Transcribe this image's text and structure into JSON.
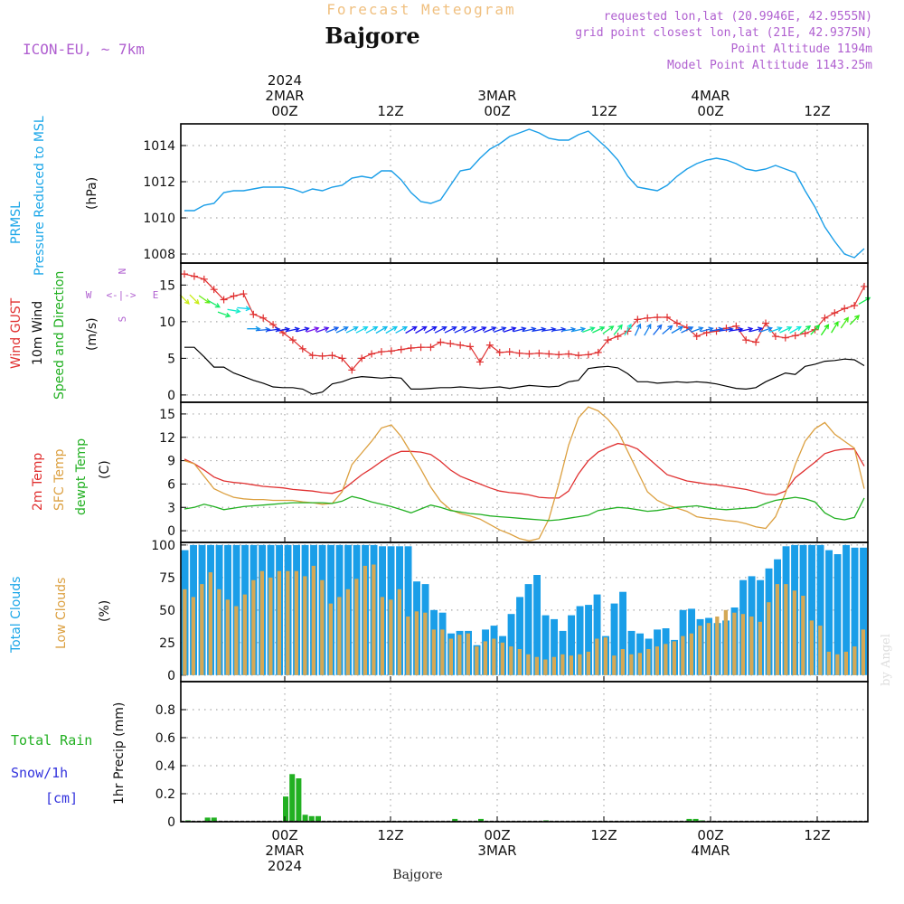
{
  "header": {
    "product": "Forecast Meteogram",
    "station": "Bajgore",
    "model": "ICON-EU, ~ 7km",
    "info_lines": [
      "requested lon,lat (20.9946E, 42.9555N)",
      "grid point closest lon,lat (21E, 42.9375N)",
      "Point Altitude 1194m",
      "Model Point Altitude 1143.25m"
    ],
    "footer_station": "Bajgore",
    "watermark": "by Angel"
  },
  "colors": {
    "pressure": "#1a9ee8",
    "gust": "#e03030",
    "wind10m": "#000000",
    "temp2m": "#e03030",
    "sfc": "#dca040",
    "dewpt": "#22b022",
    "total_cloud": "#1a9ee8",
    "low_cloud": "#d4a855",
    "rain": "#22b022",
    "snow": "#3333dd",
    "header_purple": "#b060d0",
    "product_orange": "#f0c080",
    "legend_cyan": "#1aa6e8"
  },
  "time_axis": {
    "top_labels": [
      {
        "lines": [
          "2024",
          "2MAR",
          "00Z"
        ]
      },
      {
        "lines": [
          "12Z"
        ]
      },
      {
        "lines": [
          "3MAR",
          "00Z"
        ]
      },
      {
        "lines": [
          "12Z"
        ]
      },
      {
        "lines": [
          "4MAR",
          "00Z"
        ]
      },
      {
        "lines": [
          "12Z"
        ]
      }
    ],
    "bottom_labels": [
      {
        "lines": [
          "00Z",
          "2MAR",
          "2024"
        ]
      },
      {
        "lines": [
          "12Z"
        ]
      },
      {
        "lines": [
          "00Z",
          "3MAR"
        ]
      },
      {
        "lines": [
          "12Z"
        ]
      },
      {
        "lines": [
          "00Z",
          "4MAR"
        ]
      },
      {
        "lines": [
          "12Z"
        ]
      }
    ]
  },
  "chart_data": [
    {
      "type": "line",
      "panel": "pressure",
      "ylabel_lines": [
        "PRMSL",
        "Pressure Reduced to MSL"
      ],
      "unit": "(hPa)",
      "ylim": [
        1007.5,
        1015.2
      ],
      "yticks": [
        1008,
        1010,
        1012,
        1014
      ],
      "grid": true,
      "series": [
        {
          "values": [
            1010.4,
            1010.4,
            1010.7,
            1010.8,
            1011.4,
            1011.5,
            1011.5,
            1011.6,
            1011.7,
            1011.7,
            1011.7,
            1011.6,
            1011.4,
            1011.6,
            1011.5,
            1011.7,
            1011.8,
            1012.2,
            1012.3,
            1012.2,
            1012.6,
            1012.6,
            1012.1,
            1011.4,
            1010.9,
            1010.8,
            1011.0,
            1011.8,
            1012.6,
            1012.7,
            1013.3,
            1013.8,
            1014.1,
            1014.5,
            1014.7,
            1014.9,
            1014.7,
            1014.4,
            1014.3,
            1014.3,
            1014.6,
            1014.8,
            1014.3,
            1013.8,
            1013.2,
            1012.3,
            1011.7,
            1011.6,
            1011.5,
            1011.8,
            1012.3,
            1012.7,
            1013.0,
            1013.2,
            1013.3,
            1013.2,
            1013.0,
            1012.7,
            1012.6,
            1012.7,
            1012.9,
            1012.7,
            1012.5,
            1011.5,
            1010.6,
            1009.5,
            1008.7,
            1008.0,
            1007.8,
            1008.3
          ]
        }
      ]
    },
    {
      "type": "line",
      "panel": "wind",
      "ylabel_lines": [
        "Wind GUST",
        "10m Wind",
        "Speed and Direction"
      ],
      "unit": "(m/s)",
      "compass": {
        "n": "N",
        "s": "S",
        "w": "W",
        "e": "E",
        "arrow": "<-|->"
      },
      "ylim": [
        -1,
        18
      ],
      "yticks": [
        0,
        5,
        10,
        15
      ],
      "grid": true,
      "series": [
        {
          "name": "Wind GUST",
          "values": [
            16.5,
            16.2,
            15.8,
            14.4,
            13.0,
            13.5,
            13.8,
            11.0,
            10.5,
            9.6,
            8.5,
            7.5,
            6.3,
            5.4,
            5.3,
            5.4,
            5.0,
            3.4,
            5.0,
            5.6,
            5.9,
            6.0,
            6.2,
            6.4,
            6.5,
            6.5,
            7.2,
            7.0,
            6.8,
            6.6,
            4.5,
            6.8,
            5.8,
            5.9,
            5.7,
            5.6,
            5.7,
            5.6,
            5.5,
            5.6,
            5.4,
            5.5,
            5.8,
            7.5,
            8.0,
            8.7,
            10.3,
            10.5,
            10.6,
            10.6,
            9.8,
            9.2,
            8.0,
            8.5,
            8.7,
            9.1,
            9.4,
            7.5,
            7.2,
            9.8,
            8.0,
            7.8,
            8.1,
            8.4,
            8.9,
            10.5,
            11.2,
            11.8,
            12.2,
            14.8
          ]
        },
        {
          "name": "10m Wind",
          "values": [
            6.5,
            6.5,
            5.2,
            3.8,
            3.8,
            3.0,
            2.5,
            2.0,
            1.6,
            1.1,
            1.0,
            1.0,
            0.8,
            0.1,
            0.4,
            1.5,
            1.8,
            2.3,
            2.5,
            2.4,
            2.3,
            2.4,
            2.3,
            0.8,
            0.8,
            0.9,
            1.0,
            1.0,
            1.1,
            1.0,
            0.9,
            1.0,
            1.1,
            0.9,
            1.1,
            1.3,
            1.2,
            1.1,
            1.2,
            1.8,
            2.0,
            3.6,
            3.8,
            3.9,
            3.7,
            2.9,
            1.8,
            1.8,
            1.6,
            1.7,
            1.8,
            1.7,
            1.8,
            1.7,
            1.5,
            1.2,
            0.9,
            0.8,
            1.0,
            1.8,
            2.4,
            3.0,
            2.8,
            3.9,
            4.2,
            4.6,
            4.7,
            4.9,
            4.8,
            4.0
          ]
        },
        {
          "name": "Direction (deg from)",
          "values": [
            315,
            315,
            305,
            300,
            290,
            280,
            275,
            270,
            265,
            262,
            260,
            258,
            255,
            252,
            250,
            248,
            245,
            244,
            243,
            242,
            240,
            240,
            242,
            240,
            240,
            242,
            243,
            244,
            245,
            246,
            247,
            248,
            250,
            252,
            255,
            258,
            260,
            262,
            263,
            262,
            258,
            250,
            245,
            235,
            220,
            210,
            205,
            210,
            220,
            230,
            240,
            245,
            250,
            255,
            260,
            262,
            262,
            258,
            255,
            252,
            250,
            245,
            240,
            232,
            222,
            215,
            212,
            215,
            225,
            240
          ]
        }
      ]
    },
    {
      "type": "line",
      "panel": "temperature",
      "ylabel_lines": [
        "2m Temp",
        "SFC Temp",
        "dewpt Temp"
      ],
      "unit": "(C)",
      "ylim": [
        -1.5,
        16.5
      ],
      "yticks": [
        0,
        3,
        6,
        9,
        12,
        15
      ],
      "grid": true,
      "series": [
        {
          "name": "2m Temp",
          "values": [
            9.2,
            8.6,
            7.8,
            6.9,
            6.4,
            6.2,
            6.1,
            5.9,
            5.7,
            5.6,
            5.5,
            5.3,
            5.2,
            5.1,
            4.9,
            4.8,
            5.2,
            6.2,
            7.2,
            8.0,
            8.9,
            9.7,
            10.2,
            10.2,
            10.1,
            9.8,
            8.9,
            7.8,
            7.0,
            6.5,
            6.0,
            5.5,
            5.1,
            4.9,
            4.8,
            4.6,
            4.3,
            4.2,
            4.2,
            5.1,
            7.3,
            9.0,
            10.1,
            10.7,
            11.2,
            11.0,
            10.5,
            9.4,
            8.3,
            7.2,
            6.8,
            6.4,
            6.2,
            6.0,
            5.9,
            5.7,
            5.5,
            5.3,
            5.0,
            4.7,
            4.6,
            5.1,
            6.8,
            7.8,
            8.8,
            9.9,
            10.3,
            10.5,
            10.5,
            8.3
          ]
        },
        {
          "name": "SFC Temp",
          "values": [
            9.0,
            8.6,
            7.0,
            5.4,
            4.8,
            4.3,
            4.1,
            4.0,
            4.0,
            3.9,
            3.9,
            3.9,
            3.7,
            3.6,
            3.4,
            3.5,
            5.0,
            8.5,
            10.0,
            11.5,
            13.2,
            13.6,
            12.1,
            10.0,
            7.9,
            5.6,
            3.8,
            2.7,
            2.2,
            1.9,
            1.5,
            0.8,
            0.1,
            -0.4,
            -1.0,
            -1.3,
            -1.0,
            1.5,
            6.0,
            11.0,
            14.5,
            15.9,
            15.4,
            14.3,
            12.8,
            10.2,
            7.6,
            5.0,
            3.9,
            3.3,
            2.9,
            2.5,
            1.8,
            1.6,
            1.5,
            1.3,
            1.2,
            0.9,
            0.5,
            0.3,
            1.8,
            4.8,
            8.5,
            11.5,
            13.1,
            13.9,
            12.4,
            11.5,
            10.6,
            5.4
          ]
        },
        {
          "name": "dewpt Temp",
          "values": [
            2.8,
            3.0,
            3.4,
            3.1,
            2.7,
            2.9,
            3.1,
            3.2,
            3.3,
            3.4,
            3.5,
            3.6,
            3.6,
            3.6,
            3.6,
            3.5,
            3.8,
            4.4,
            4.1,
            3.7,
            3.4,
            3.1,
            2.7,
            2.3,
            2.8,
            3.3,
            3.0,
            2.6,
            2.4,
            2.2,
            2.1,
            1.9,
            1.8,
            1.7,
            1.6,
            1.5,
            1.4,
            1.3,
            1.4,
            1.6,
            1.8,
            2.0,
            2.6,
            2.8,
            3.0,
            2.9,
            2.7,
            2.5,
            2.6,
            2.8,
            3.0,
            3.1,
            3.2,
            3.0,
            2.8,
            2.7,
            2.8,
            2.9,
            3.0,
            3.5,
            3.9,
            4.1,
            4.3,
            4.1,
            3.7,
            2.3,
            1.6,
            1.4,
            1.7,
            4.2
          ]
        }
      ]
    },
    {
      "type": "bar",
      "panel": "clouds",
      "ylabel_lines": [
        "Total Clouds",
        "Low Clouds"
      ],
      "unit": "(%)",
      "ylim": [
        -5,
        102
      ],
      "yticks": [
        0,
        25,
        50,
        75,
        100
      ],
      "grid": true,
      "series": [
        {
          "name": "Total Clouds",
          "values": [
            96,
            100,
            100,
            100,
            100,
            100,
            100,
            100,
            100,
            100,
            100,
            100,
            100,
            100,
            100,
            100,
            100,
            100,
            100,
            100,
            100,
            100,
            100,
            99,
            99,
            99,
            99,
            72,
            70,
            50,
            48,
            32,
            34,
            34,
            23,
            35,
            38,
            30,
            47,
            60,
            70,
            77,
            46,
            43,
            34,
            46,
            53,
            54,
            62,
            30,
            55,
            64,
            34,
            32,
            28,
            35,
            36,
            27,
            50,
            51,
            43,
            44,
            40,
            42,
            52,
            73,
            76,
            73,
            82,
            89,
            99,
            100,
            100,
            100,
            100,
            96,
            93,
            100,
            98,
            98
          ]
        },
        {
          "name": "Low Clouds",
          "values": [
            66,
            60,
            70,
            79,
            66,
            58,
            53,
            62,
            73,
            80,
            75,
            80,
            80,
            80,
            76,
            84,
            73,
            55,
            60,
            66,
            74,
            84,
            85,
            60,
            58,
            66,
            45,
            49,
            48,
            35,
            35,
            28,
            31,
            32,
            22,
            26,
            28,
            25,
            22,
            20,
            16,
            14,
            12,
            14,
            16,
            15,
            16,
            18,
            28,
            29,
            15,
            20,
            16,
            17,
            20,
            22,
            24,
            26,
            30,
            32,
            38,
            40,
            45,
            50,
            48,
            47,
            45,
            41,
            56,
            70,
            70,
            65,
            61,
            42,
            38,
            18,
            16,
            18,
            22,
            35
          ]
        }
      ]
    },
    {
      "type": "bar",
      "panel": "precip",
      "ylabel_lines": [
        "1hr Precip (mm)"
      ],
      "legend_lines": [
        "Total  Rain",
        "Snow/1h",
        "[cm]"
      ],
      "ylim": [
        0,
        1.0
      ],
      "yticks": [
        0,
        0.2,
        0.4,
        0.6,
        0.8
      ],
      "grid": true,
      "series": [
        {
          "name": "Total Rain",
          "values": [
            0.01,
            0,
            0,
            0.03,
            0.03,
            0,
            0,
            0,
            0,
            0,
            0,
            0,
            0,
            0,
            0,
            0.18,
            0.34,
            0.31,
            0.05,
            0.04,
            0.04,
            0,
            0,
            0,
            0,
            0,
            0,
            0,
            0,
            0,
            0,
            0,
            0,
            0,
            0,
            0,
            0,
            0,
            0,
            0,
            0,
            0.02,
            0,
            0,
            0,
            0.02,
            0,
            0,
            0,
            0,
            0,
            0,
            0,
            0,
            0,
            0.01,
            0,
            0,
            0,
            0,
            0,
            0,
            0,
            0,
            0,
            0,
            0,
            0,
            0,
            0,
            0,
            0,
            0,
            0,
            0,
            0,
            0,
            0.02,
            0.02,
            0.01,
            0,
            0,
            0,
            0,
            0,
            0,
            0,
            0,
            0,
            0,
            0,
            0,
            0,
            0,
            0,
            0,
            0,
            0,
            0,
            0,
            0,
            0,
            0,
            0,
            0,
            0,
            0,
            0,
            0,
            0,
            0,
            0,
            0,
            0,
            0,
            0,
            0,
            0
          ]
        }
      ]
    }
  ]
}
